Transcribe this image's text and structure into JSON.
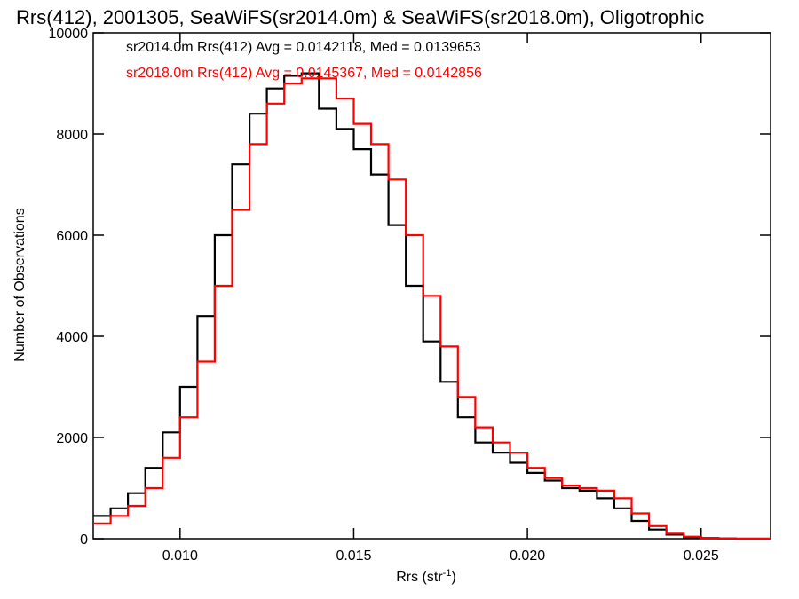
{
  "chart_data": {
    "type": "line",
    "title": "Rrs(412), 2001305, SeaWiFS(sr2014.0m) & SeaWiFS(sr2018.0m), Oligotrophic",
    "xlabel": "Rrs (str",
    "xlabel_sup": "-1",
    "ylabel": "Number of Observations",
    "xlim": [
      0.0075,
      0.027
    ],
    "ylim": [
      0,
      10000
    ],
    "xticks": [
      0.01,
      0.015,
      0.02,
      0.025
    ],
    "xtick_labels": [
      "0.010",
      "0.015",
      "0.020",
      "0.025"
    ],
    "yticks": [
      0,
      2000,
      4000,
      6000,
      8000,
      10000
    ],
    "ytick_labels": [
      "0",
      "2000",
      "4000",
      "6000",
      "8000",
      "10000"
    ],
    "grid": false,
    "legend": "top-left",
    "annotations": [
      {
        "text": "sr2014.0m Rrs(412) Avg = 0.0142118, Med = 0.0139653",
        "color": "#000000"
      },
      {
        "text": "sr2018.0m Rrs(412) Avg = 0.0145367, Med = 0.0142856",
        "color": "#ff0000"
      }
    ],
    "series": [
      {
        "color": "#000000",
        "x": [
          0.0075,
          0.008,
          0.0085,
          0.009,
          0.0095,
          0.01,
          0.0105,
          0.011,
          0.0115,
          0.012,
          0.0125,
          0.013,
          0.0135,
          0.014,
          0.0145,
          0.015,
          0.0155,
          0.016,
          0.0165,
          0.017,
          0.0175,
          0.018,
          0.0185,
          0.019,
          0.0195,
          0.02,
          0.0205,
          0.021,
          0.0215,
          0.022,
          0.0225,
          0.023,
          0.0235,
          0.024,
          0.0245,
          0.025,
          0.0255,
          0.026,
          0.0265,
          0.027
        ],
        "y": [
          450,
          600,
          900,
          1400,
          2100,
          3000,
          4400,
          6000,
          7400,
          8400,
          8900,
          9150,
          9200,
          8500,
          8100,
          7700,
          7200,
          6200,
          5000,
          3900,
          3100,
          2400,
          1900,
          1700,
          1500,
          1300,
          1150,
          1000,
          950,
          800,
          600,
          350,
          180,
          80,
          30,
          10,
          5,
          0,
          0,
          0
        ]
      },
      {
        "color": "#ff0000",
        "x": [
          0.0075,
          0.008,
          0.0085,
          0.009,
          0.0095,
          0.01,
          0.0105,
          0.011,
          0.0115,
          0.012,
          0.0125,
          0.013,
          0.0135,
          0.014,
          0.0145,
          0.015,
          0.0155,
          0.016,
          0.0165,
          0.017,
          0.0175,
          0.018,
          0.0185,
          0.019,
          0.0195,
          0.02,
          0.0205,
          0.021,
          0.0215,
          0.022,
          0.0225,
          0.023,
          0.0235,
          0.024,
          0.0245,
          0.025,
          0.0255,
          0.026,
          0.0265,
          0.027
        ],
        "y": [
          300,
          450,
          650,
          1000,
          1600,
          2400,
          3500,
          5000,
          6500,
          7800,
          8600,
          9000,
          9100,
          9100,
          8700,
          8200,
          7800,
          7100,
          6000,
          4800,
          3800,
          2800,
          2200,
          1900,
          1700,
          1400,
          1200,
          1050,
          1000,
          950,
          800,
          500,
          250,
          100,
          40,
          15,
          5,
          0,
          0,
          0
        ]
      }
    ]
  }
}
